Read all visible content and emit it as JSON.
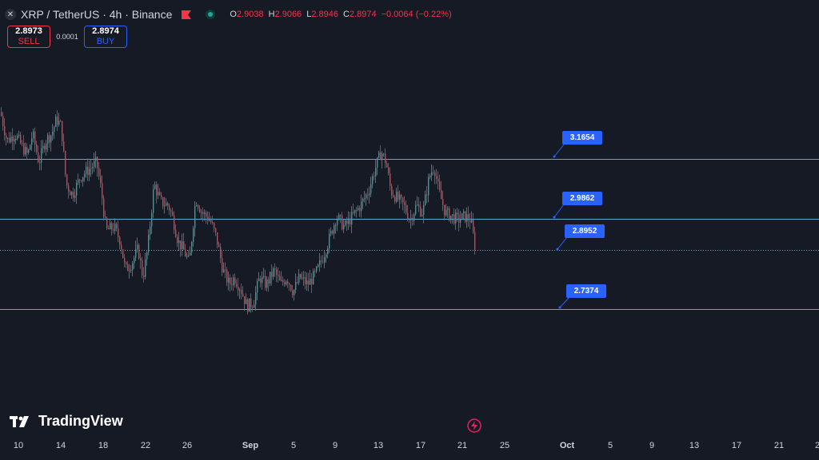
{
  "header": {
    "symbol_icon": "xrp-logo-icon",
    "title": "XRP / TetherUS · 4h · Binance",
    "flag_color": "#f23645",
    "ohlc": {
      "o_label": "O",
      "o": "2.9038",
      "h_label": "H",
      "h": "2.9066",
      "l_label": "L",
      "l": "2.8946",
      "c_label": "C",
      "c": "2.8974",
      "change": "−0.0064 (−0.22%)"
    }
  },
  "trade": {
    "sell_price": "2.8973",
    "sell_label": "SELL",
    "spread": "0.0001",
    "buy_price": "2.8974",
    "buy_label": "BUY"
  },
  "levels": [
    {
      "value": "3.1654"
    },
    {
      "value": "2.9862"
    },
    {
      "value": "2.8952"
    },
    {
      "value": "2.7374"
    }
  ],
  "brand": {
    "name": "TradingView"
  },
  "x_axis": [
    {
      "label": "10",
      "bold": false
    },
    {
      "label": "14",
      "bold": false
    },
    {
      "label": "18",
      "bold": false
    },
    {
      "label": "22",
      "bold": false
    },
    {
      "label": "26",
      "bold": false
    },
    {
      "label": "Sep",
      "bold": true
    },
    {
      "label": "5",
      "bold": false
    },
    {
      "label": "9",
      "bold": false
    },
    {
      "label": "13",
      "bold": false
    },
    {
      "label": "17",
      "bold": false
    },
    {
      "label": "21",
      "bold": false
    },
    {
      "label": "25",
      "bold": false
    },
    {
      "label": "Oct",
      "bold": true
    },
    {
      "label": "5",
      "bold": false
    },
    {
      "label": "9",
      "bold": false
    },
    {
      "label": "13",
      "bold": false
    },
    {
      "label": "17",
      "bold": false
    },
    {
      "label": "21",
      "bold": false
    },
    {
      "label": "2",
      "bold": false
    }
  ],
  "chart_data": {
    "type": "candlestick",
    "up_color": "#26a69a",
    "down_color": "#f23645",
    "level_color": "#4fb0c6",
    "last_price": 2.8974,
    "path_anchors": [
      [
        0,
        3.28
      ],
      [
        8,
        3.2
      ],
      [
        18,
        3.22
      ],
      [
        28,
        3.18
      ],
      [
        34,
        3.16
      ],
      [
        40,
        3.22
      ],
      [
        48,
        3.14
      ],
      [
        56,
        3.2
      ],
      [
        64,
        3.22
      ],
      [
        70,
        3.26
      ],
      [
        76,
        3.24
      ],
      [
        82,
        3.08
      ],
      [
        90,
        3.05
      ],
      [
        100,
        3.1
      ],
      [
        110,
        3.12
      ],
      [
        120,
        3.14
      ],
      [
        126,
        3.06
      ],
      [
        132,
        2.95
      ],
      [
        142,
        2.96
      ],
      [
        150,
        2.92
      ],
      [
        156,
        2.84
      ],
      [
        164,
        2.86
      ],
      [
        172,
        2.9
      ],
      [
        178,
        2.82
      ],
      [
        184,
        2.9
      ],
      [
        192,
        3.08
      ],
      [
        200,
        3.03
      ],
      [
        210,
        3.02
      ],
      [
        216,
        2.98
      ],
      [
        222,
        2.92
      ],
      [
        228,
        2.9
      ],
      [
        236,
        2.86
      ],
      [
        244,
        3.04
      ],
      [
        252,
        3.0
      ],
      [
        262,
        2.98
      ],
      [
        270,
        2.93
      ],
      [
        278,
        2.84
      ],
      [
        286,
        2.8
      ],
      [
        292,
        2.82
      ],
      [
        300,
        2.79
      ],
      [
        308,
        2.74
      ],
      [
        316,
        2.75
      ],
      [
        324,
        2.82
      ],
      [
        332,
        2.8
      ],
      [
        342,
        2.84
      ],
      [
        350,
        2.8
      ],
      [
        358,
        2.82
      ],
      [
        366,
        2.78
      ],
      [
        374,
        2.82
      ],
      [
        384,
        2.8
      ],
      [
        394,
        2.83
      ],
      [
        402,
        2.87
      ],
      [
        410,
        2.92
      ],
      [
        420,
        2.99
      ],
      [
        430,
        2.96
      ],
      [
        440,
        2.99
      ],
      [
        450,
        3.02
      ],
      [
        460,
        3.06
      ],
      [
        468,
        3.12
      ],
      [
        476,
        3.17
      ],
      [
        482,
        3.14
      ],
      [
        488,
        3.06
      ],
      [
        496,
        3.04
      ],
      [
        504,
        3.02
      ],
      [
        512,
        2.98
      ],
      [
        520,
        3.02
      ],
      [
        528,
        3.0
      ],
      [
        536,
        3.1
      ],
      [
        542,
        3.13
      ],
      [
        548,
        3.06
      ],
      [
        556,
        3.0
      ],
      [
        564,
        2.99
      ],
      [
        572,
        2.98
      ],
      [
        580,
        2.99
      ],
      [
        588,
        2.98
      ],
      [
        594,
        2.895
      ]
    ]
  }
}
